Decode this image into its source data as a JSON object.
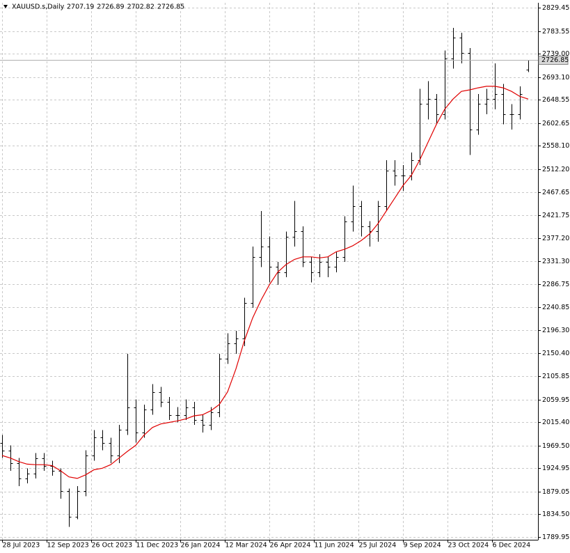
{
  "chart_data": {
    "type": "ohlc",
    "title": "XAUUSD.s,Daily",
    "ylim": [
      1784.5,
      2839
    ],
    "yticks": [
      1789.95,
      {
        "value": 1834.5,
        "label": "1834.50"
      },
      1879.05,
      1924.95,
      {
        "value": 1969.5,
        "label": "1969.50"
      },
      {
        "value": 2015.4,
        "label": "2015.40"
      },
      2059.95,
      2105.85,
      {
        "value": 2150.4,
        "label": "2150.40"
      },
      {
        "value": 2196.3,
        "label": "2196.30"
      },
      2240.85,
      2286.75,
      {
        "value": 2331.3,
        "label": "2331.30"
      },
      {
        "value": 2377.2,
        "label": "2377.20"
      },
      2421.75,
      2467.65,
      {
        "value": 2512.2,
        "label": "2512.20"
      },
      {
        "value": 2558.1,
        "label": "2558.10"
      },
      2602.65,
      2648.55,
      {
        "value": 2693.1,
        "label": "2693.10"
      },
      {
        "value": 2739,
        "label": "2739.00"
      },
      2783.55,
      2829.45
    ],
    "xlim": [
      -0.25,
      64.17
    ],
    "xticks": [
      {
        "value": 0,
        "label": "28 Jul 2023"
      },
      {
        "value": 5.33,
        "label": "12 Sep 2023"
      },
      {
        "value": 10.67,
        "label": "26 Oct 2023"
      },
      {
        "value": 16,
        "label": "11 Dec 2023"
      },
      {
        "value": 21.33,
        "label": "26 Jan 2024"
      },
      {
        "value": 26.67,
        "label": "12 Mar 2024"
      },
      {
        "value": 32,
        "label": "26 Apr 2024"
      },
      {
        "value": 37.33,
        "label": "11 Jun 2024"
      },
      {
        "value": 42.67,
        "label": "25 Jul 2024"
      },
      {
        "value": 48,
        "label": "9 Sep 2024"
      },
      {
        "value": 53.33,
        "label": "23 Oct 2024"
      },
      {
        "value": 58.67,
        "label": "6 Dec 2024"
      }
    ],
    "grid": true,
    "series": [
      {
        "type": "ohlc",
        "color": "#000000",
        "open": [
          1975,
          1960,
          1935,
          1905,
          1915,
          1945,
          1930,
          1920,
          1880,
          1830,
          1880,
          1950,
          1985,
          1975,
          1950,
          2000,
          2045,
          1995,
          2040,
          2075,
          2055,
          2030,
          2030,
          2045,
          2020,
          2010,
          2035,
          2140,
          2170,
          2180,
          2250,
          2340,
          2360,
          2320,
          2310,
          2380,
          2390,
          2330,
          2310,
          2330,
          2320,
          2340,
          2410,
          2440,
          2400,
          2390,
          2440,
          2510,
          2500,
          2500,
          2530,
          2640,
          2650,
          2620,
          2730,
          2770,
          2740,
          2590,
          2640,
          2650,
          2660,
          2620,
          2620,
          2707.19
        ],
        "high": [
          1990,
          1970,
          1945,
          1925,
          1955,
          1955,
          1940,
          1925,
          1885,
          1890,
          1960,
          2000,
          2000,
          1985,
          2010,
          2150,
          2060,
          2050,
          2090,
          2085,
          2065,
          2045,
          2060,
          2055,
          2030,
          2045,
          2150,
          2190,
          2195,
          2260,
          2360,
          2430,
          2380,
          2330,
          2390,
          2450,
          2400,
          2340,
          2345,
          2340,
          2350,
          2420,
          2480,
          2450,
          2410,
          2450,
          2530,
          2530,
          2520,
          2545,
          2670,
          2685,
          2660,
          2745,
          2790,
          2780,
          2750,
          2660,
          2670,
          2720,
          2680,
          2640,
          2675,
          2726.89
        ],
        "low": [
          1945,
          1920,
          1890,
          1895,
          1905,
          1920,
          1910,
          1865,
          1810,
          1825,
          1870,
          1940,
          1960,
          1935,
          1935,
          1990,
          1975,
          1985,
          2030,
          2045,
          2020,
          2015,
          2020,
          2010,
          1995,
          2000,
          2025,
          2130,
          2150,
          2165,
          2240,
          2320,
          2290,
          2285,
          2300,
          2360,
          2320,
          2290,
          2300,
          2300,
          2310,
          2330,
          2390,
          2380,
          2360,
          2370,
          2430,
          2480,
          2470,
          2490,
          2520,
          2610,
          2600,
          2610,
          2710,
          2720,
          2540,
          2580,
          2620,
          2630,
          2600,
          2590,
          2610,
          2702.82
        ],
        "close": [
          1960,
          1935,
          1905,
          1915,
          1945,
          1930,
          1920,
          1880,
          1830,
          1880,
          1950,
          1985,
          1975,
          1950,
          2000,
          2045,
          1995,
          2040,
          2075,
          2055,
          2030,
          2030,
          2045,
          2020,
          2010,
          2035,
          2140,
          2170,
          2180,
          2250,
          2340,
          2360,
          2320,
          2310,
          2380,
          2390,
          2330,
          2310,
          2330,
          2320,
          2340,
          2410,
          2440,
          2400,
          2390,
          2440,
          2510,
          2500,
          2500,
          2530,
          2640,
          2650,
          2620,
          2730,
          2770,
          2740,
          2590,
          2640,
          2650,
          2660,
          2620,
          2620,
          2660,
          2726.85
        ]
      },
      {
        "type": "line",
        "color": "#e00000",
        "values": [
          1950,
          1945,
          1938,
          1933,
          1932,
          1932,
          1930,
          1920,
          1908,
          1905,
          1912,
          1922,
          1925,
          1932,
          1945,
          1958,
          1970,
          1990,
          2005,
          2012,
          2015,
          2018,
          2022,
          2028,
          2030,
          2038,
          2050,
          2075,
          2120,
          2175,
          2220,
          2255,
          2285,
          2310,
          2325,
          2335,
          2340,
          2340,
          2338,
          2340,
          2350,
          2355,
          2362,
          2372,
          2385,
          2405,
          2430,
          2455,
          2480,
          2500,
          2530,
          2565,
          2600,
          2630,
          2650,
          2665,
          2668,
          2672,
          2675,
          2675,
          2672,
          2665,
          2655,
          2650
        ]
      }
    ]
  }
}
